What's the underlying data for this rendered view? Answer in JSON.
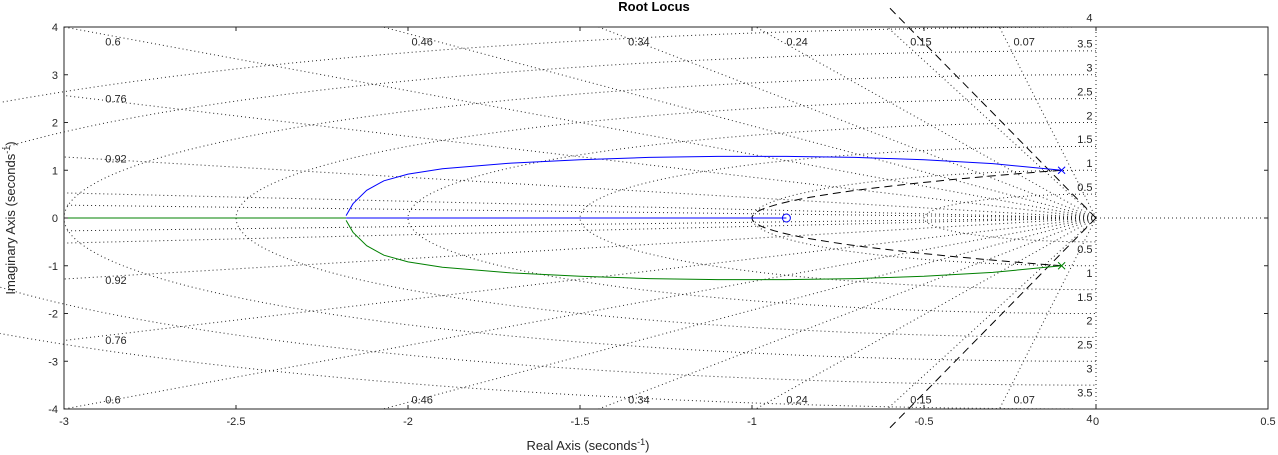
{
  "chart_data": {
    "type": "line",
    "title": "Root Locus",
    "xlabel": "Real Axis (seconds",
    "xlabel_sup": "-1",
    "xlabel_suffix": ")",
    "ylabel": "Imaginary Axis (seconds",
    "ylabel_sup": "-1",
    "ylabel_suffix": ")",
    "xlim": [
      -3,
      0.5
    ],
    "ylim": [
      -4,
      4
    ],
    "xticks": [
      -3,
      -2.5,
      -2,
      -1.5,
      -1,
      -0.5,
      0,
      0.5
    ],
    "xtick_labels": [
      "-3",
      "-2.5",
      "-2",
      "-1.5",
      "-1",
      "-0.5",
      "0",
      "0.5"
    ],
    "yticks": [
      4,
      3,
      2,
      1,
      0,
      -1,
      -2,
      -3,
      -4
    ],
    "ytick_labels": [
      "4",
      "3",
      "2",
      "1",
      "0",
      "-1",
      "-2",
      "-3",
      "-4"
    ],
    "grid": true,
    "damping_ratios": [
      0.07,
      0.15,
      0.24,
      0.34,
      0.46,
      0.6,
      0.76,
      0.92
    ],
    "damping_labels": [
      {
        "text": "0.6",
        "zeta": 0.6,
        "x": -2.88,
        "y": 3.7
      },
      {
        "text": "0.46",
        "zeta": 0.46,
        "x": -1.99,
        "y": 3.7
      },
      {
        "text": "0.34",
        "zeta": 0.34,
        "x": -1.36,
        "y": 3.7
      },
      {
        "text": "0.24",
        "zeta": 0.24,
        "x": -0.9,
        "y": 3.7
      },
      {
        "text": "0.15",
        "zeta": 0.15,
        "x": -0.54,
        "y": 3.7
      },
      {
        "text": "0.07",
        "zeta": 0.07,
        "x": -0.24,
        "y": 3.7
      },
      {
        "text": "0.76",
        "zeta": 0.76,
        "x": -2.88,
        "y": 2.5
      },
      {
        "text": "0.92",
        "zeta": 0.92,
        "x": -2.88,
        "y": 1.25
      },
      {
        "text": "0.92",
        "zeta": 0.92,
        "x": -2.88,
        "y": -1.3
      },
      {
        "text": "0.76",
        "zeta": 0.76,
        "x": -2.88,
        "y": -2.55
      },
      {
        "text": "0.6",
        "zeta": 0.6,
        "x": -2.88,
        "y": -3.8
      },
      {
        "text": "0.46",
        "zeta": 0.46,
        "x": -1.99,
        "y": -3.8
      },
      {
        "text": "0.34",
        "zeta": 0.34,
        "x": -1.36,
        "y": -3.8
      },
      {
        "text": "0.24",
        "zeta": 0.24,
        "x": -0.9,
        "y": -3.8
      },
      {
        "text": "0.15",
        "zeta": 0.15,
        "x": -0.54,
        "y": -3.8
      },
      {
        "text": "0.07",
        "zeta": 0.07,
        "x": -0.24,
        "y": -3.8
      }
    ],
    "natural_frequencies": [
      0.5,
      1,
      1.5,
      2,
      2.5,
      3,
      3.5,
      4
    ],
    "frequency_labels": [
      {
        "text": "4",
        "x": -0.01,
        "y": 4.2
      },
      {
        "text": "3.5",
        "x": -0.01,
        "y": 3.65
      },
      {
        "text": "3",
        "x": -0.01,
        "y": 3.15
      },
      {
        "text": "2.5",
        "x": -0.01,
        "y": 2.65
      },
      {
        "text": "2",
        "x": -0.01,
        "y": 2.15
      },
      {
        "text": "1.5",
        "x": -0.01,
        "y": 1.65
      },
      {
        "text": "1",
        "x": -0.01,
        "y": 1.15
      },
      {
        "text": "0.5",
        "x": -0.01,
        "y": 0.65
      },
      {
        "text": "0.5",
        "x": -0.01,
        "y": -0.65
      },
      {
        "text": "1",
        "x": -0.01,
        "y": -1.15
      },
      {
        "text": "1.5",
        "x": -0.01,
        "y": -1.65
      },
      {
        "text": "2",
        "x": -0.01,
        "y": -2.15
      },
      {
        "text": "2.5",
        "x": -0.01,
        "y": -2.65
      },
      {
        "text": "3",
        "x": -0.01,
        "y": -3.15
      },
      {
        "text": "3.5",
        "x": -0.01,
        "y": -3.65
      },
      {
        "text": "4",
        "x": -0.01,
        "y": -4.2
      }
    ],
    "series": [
      {
        "color": "#0000ff",
        "x": [
          -0.1,
          -0.3,
          -0.5,
          -0.7,
          -0.9,
          -1.1,
          -1.3,
          -1.5,
          -1.7,
          -1.9,
          -2.0,
          -2.07,
          -2.12,
          -2.16,
          -2.18
        ],
        "y": [
          1.0,
          1.14,
          1.22,
          1.27,
          1.29,
          1.29,
          1.27,
          1.22,
          1.15,
          1.03,
          0.92,
          0.78,
          0.58,
          0.3,
          0.05
        ]
      },
      {
        "color": "#008000",
        "x": [
          -0.1,
          -0.3,
          -0.5,
          -0.7,
          -0.9,
          -1.1,
          -1.3,
          -1.5,
          -1.7,
          -1.9,
          -2.0,
          -2.07,
          -2.12,
          -2.16,
          -2.18
        ],
        "y": [
          -1.0,
          -1.14,
          -1.22,
          -1.27,
          -1.29,
          -1.29,
          -1.27,
          -1.22,
          -1.15,
          -1.03,
          -0.92,
          -0.78,
          -0.58,
          -0.3,
          -0.05
        ]
      },
      {
        "color": "#0000ff",
        "x": [
          -0.9,
          -2.18
        ],
        "y": [
          0,
          0
        ]
      },
      {
        "color": "#008000",
        "x": [
          -2.18,
          -3.0
        ],
        "y": [
          0,
          0
        ]
      }
    ],
    "poles": [
      {
        "x": -0.1,
        "y": 1.0
      },
      {
        "x": -0.1,
        "y": -1.0
      }
    ],
    "zeros": [
      {
        "x": -0.9,
        "y": 0
      }
    ],
    "colors": {
      "branch1": "#0000ff",
      "branch2": "#008000",
      "grid": "#262626",
      "boundary": "#000000"
    }
  }
}
